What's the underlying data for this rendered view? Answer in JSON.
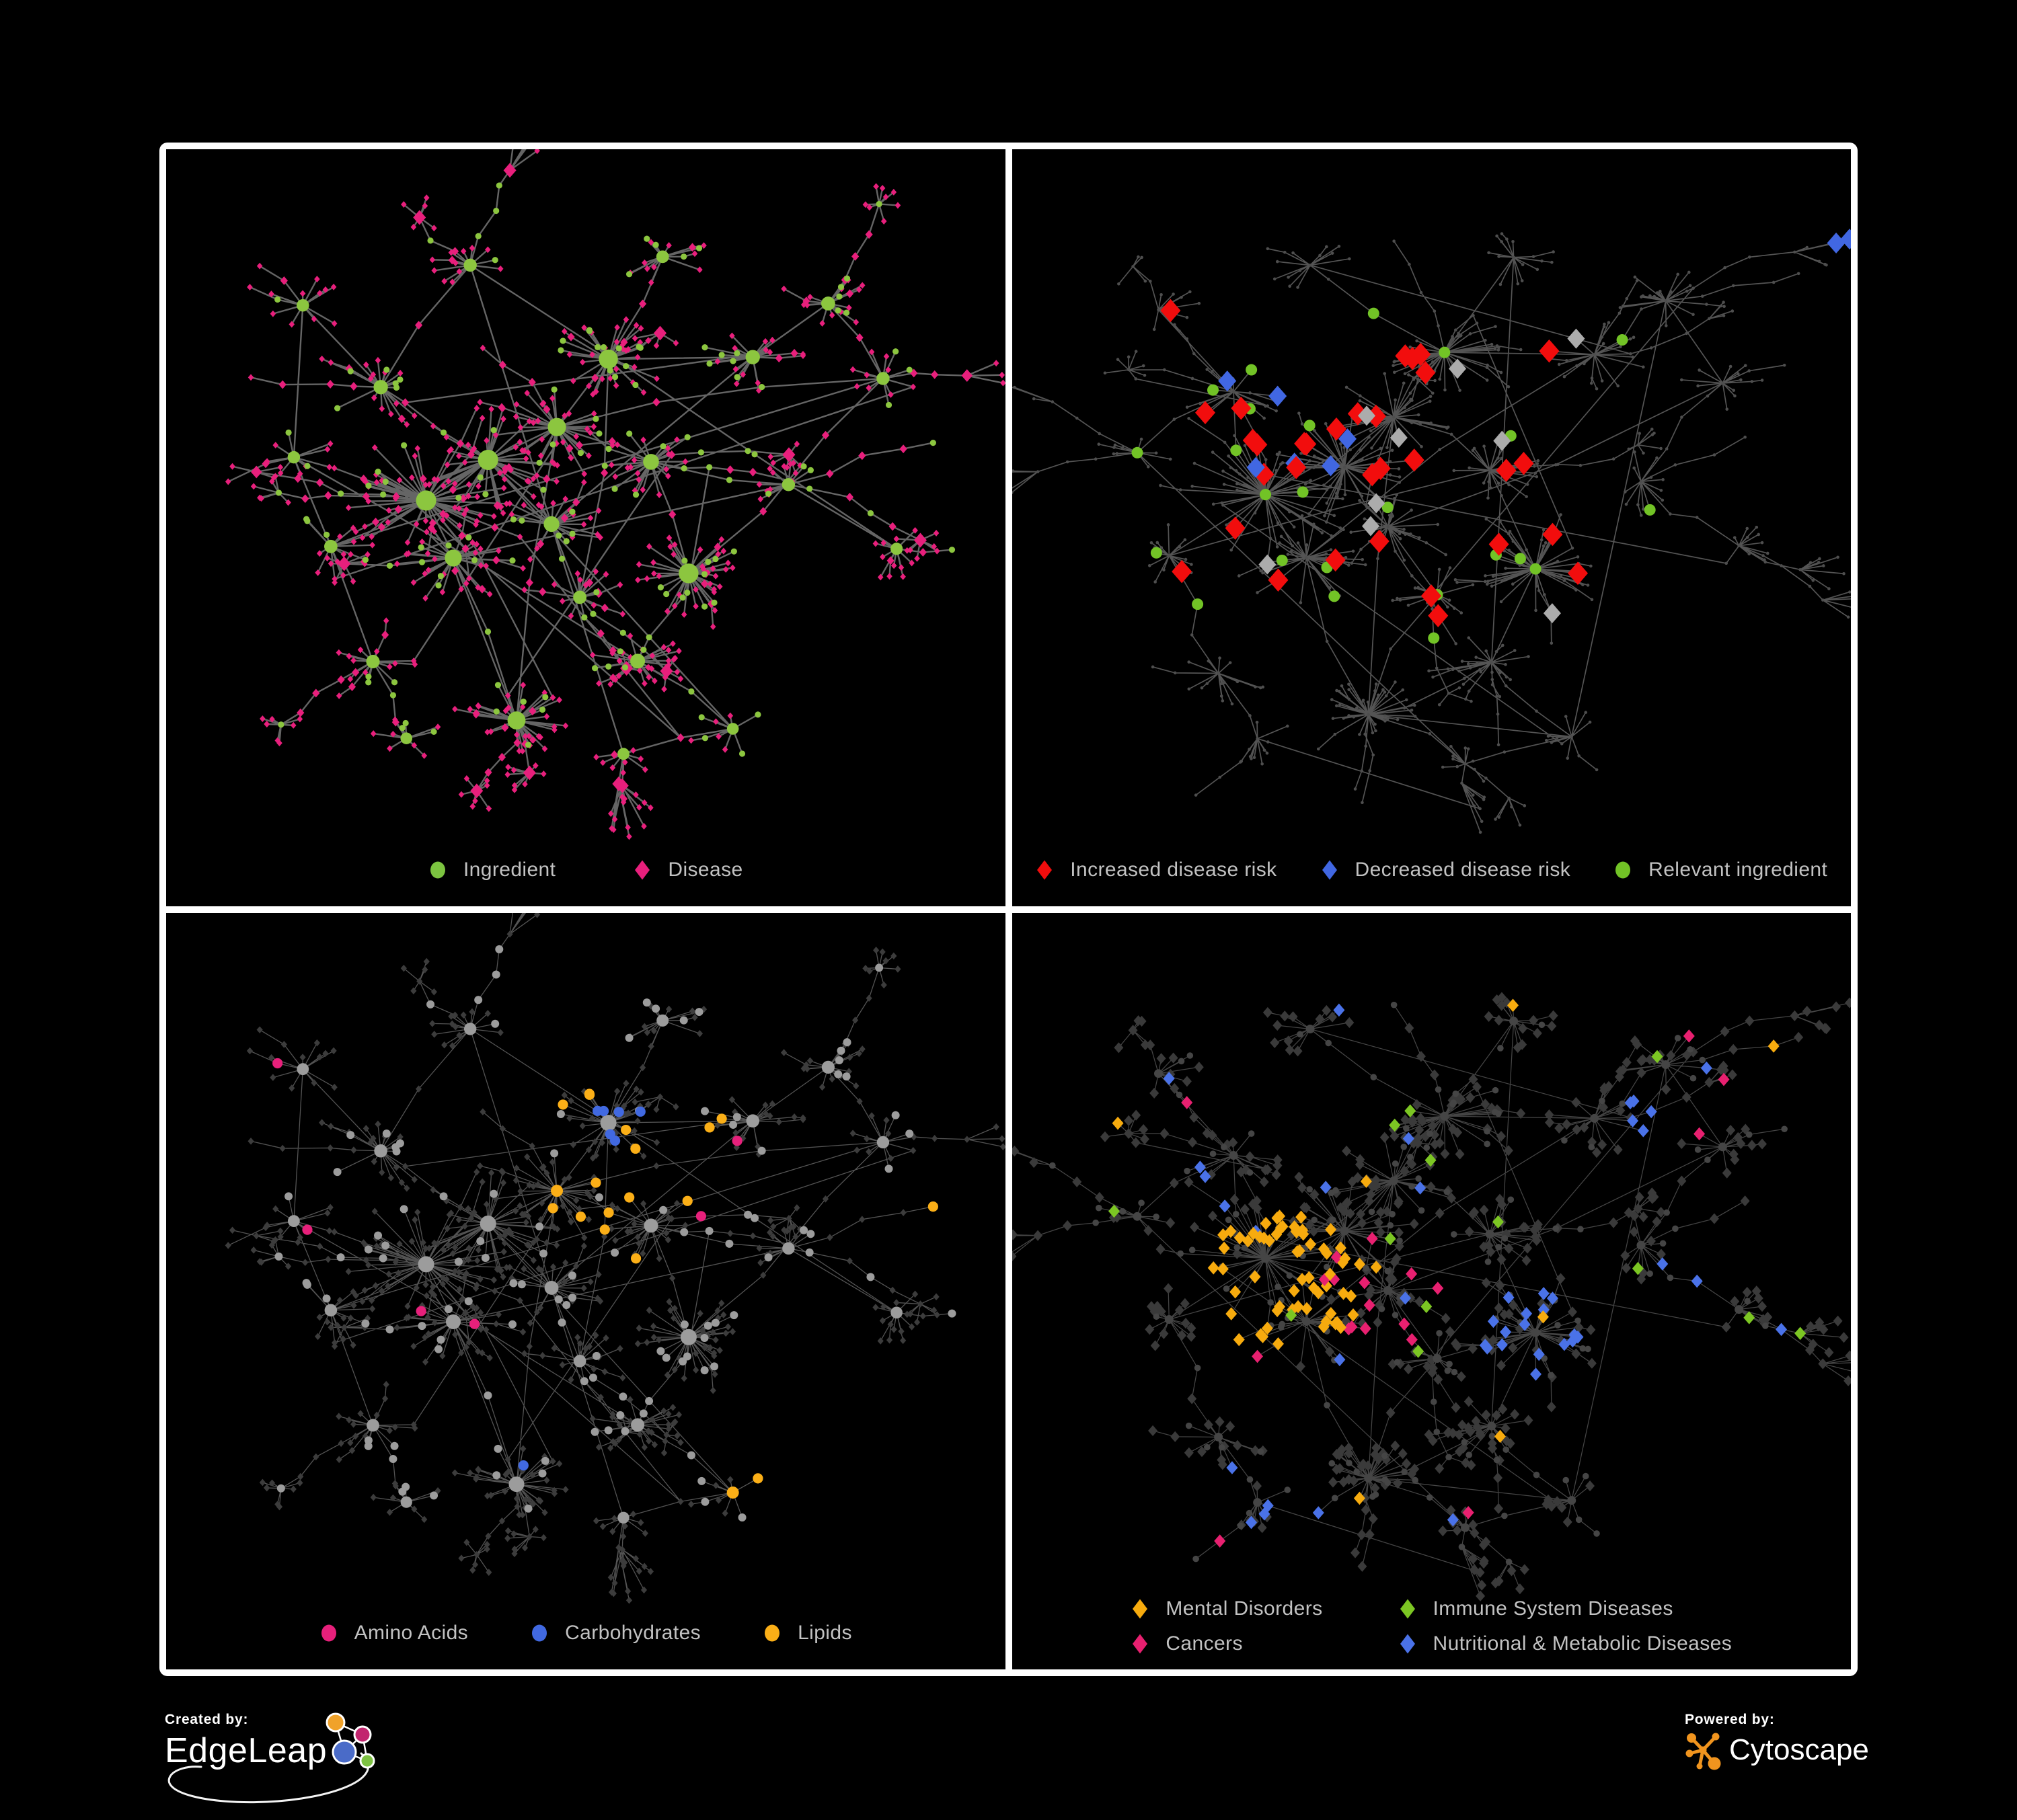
{
  "page": {
    "background": "#000000",
    "frame_color": "#ffffff"
  },
  "legend_text_color": "#c2c2c2",
  "panels": [
    {
      "name": "ingredient-disease-network",
      "legend": [
        {
          "label": "Ingredient",
          "shape": "circle",
          "color": "#7CC440"
        },
        {
          "label": "Disease",
          "shape": "diamond",
          "color": "#E81F7C"
        }
      ],
      "legend_gap": 115,
      "style": {
        "edge_color": "#6A6A6A",
        "edge_width": 2.4,
        "edge_opacity": 0.95,
        "ingredient_color": "#8CC63F",
        "disease_color": "#E81F7C"
      }
    },
    {
      "name": "disease-risk-network",
      "legend": [
        {
          "label": "Increased disease risk",
          "shape": "diamond",
          "color": "#F20D0D"
        },
        {
          "label": "Decreased disease risk",
          "shape": "diamond",
          "color": "#4167E2"
        },
        {
          "label": "Relevant ingredient",
          "shape": "circle",
          "color": "#72C326"
        }
      ],
      "legend_gap": 64,
      "style": {
        "edge_color": "#5D5D5D",
        "edge_width": 1.7,
        "edge_opacity": 0.9,
        "base_node_color": "#4E4E4E",
        "increased_color": "#F20D0D",
        "decreased_color": "#4167E2",
        "unlabeled_color": "#ACACAC",
        "relevant_color": "#72C326"
      },
      "highlight_counts": {
        "increased": 32,
        "decreased": 9,
        "unlabeled": 9,
        "relevant": 24
      }
    },
    {
      "name": "macronutrients-network",
      "legend": [
        {
          "label": "Amino Acids",
          "shape": "circle",
          "color": "#E7207B"
        },
        {
          "label": "Carbohydrates",
          "shape": "circle",
          "color": "#4169E1"
        },
        {
          "label": "Lipids",
          "shape": "circle",
          "color": "#FBAF17"
        }
      ],
      "legend_gap": 92,
      "style": {
        "edge_color": "#8B8B8B",
        "edge_width": 1.3,
        "edge_opacity": 0.6,
        "ingredient_color": "#9C9C9C",
        "disease_color": "#3C3C3C",
        "amino_color": "#E7207B",
        "carb_color": "#4169E1",
        "lipid_color": "#FBAF17"
      }
    },
    {
      "name": "disease-categories-network",
      "legend": [
        {
          "label": "Mental Disorders",
          "shape": "diamond",
          "color": "#F7AB0E"
        },
        {
          "label": "Immune System Diseases",
          "shape": "diamond",
          "color": "#7CC623"
        },
        {
          "label": "Cancers",
          "shape": "diamond",
          "color": "#E82070"
        },
        {
          "label": "Nutritional & Metabolic Diseases",
          "shape": "diamond",
          "color": "#4A72E8"
        }
      ],
      "style": {
        "edge_color": "#8A8A8A",
        "edge_width": 1.25,
        "edge_opacity": 0.5,
        "base_circle_color": "#454545",
        "base_diamond_color": "#3A3A3A",
        "mental_color": "#F7AB0E",
        "immune_color": "#7CC623",
        "cancer_color": "#E82070",
        "nutritional_color": "#4A72E8"
      }
    }
  ],
  "footer": {
    "created_by_label": "Created by:",
    "created_by_name": "EdgeLeap",
    "powered_by_label": "Powered by:",
    "powered_by_name": "Cytoscape",
    "edgeleap_logo_colors": {
      "orange": "#F0A22A",
      "pink": "#C2256E",
      "blue": "#4A6BC8",
      "green": "#7DC242"
    },
    "cytoscape_logo_color": "#F0941E"
  }
}
